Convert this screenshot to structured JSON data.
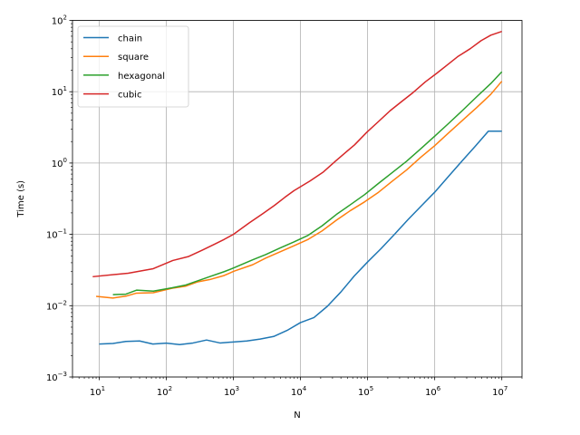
{
  "chart_data": {
    "type": "line",
    "title": "",
    "xlabel": "N",
    "ylabel": "Time (s)",
    "xscale": "log",
    "yscale": "log",
    "xlim": [
      4,
      20000000
    ],
    "ylim": [
      0.001,
      100
    ],
    "x_ticks": [
      {
        "base": "10",
        "exp": "1",
        "value": 10
      },
      {
        "base": "10",
        "exp": "2",
        "value": 100
      },
      {
        "base": "10",
        "exp": "3",
        "value": 1000
      },
      {
        "base": "10",
        "exp": "4",
        "value": 10000
      },
      {
        "base": "10",
        "exp": "5",
        "value": 100000
      },
      {
        "base": "10",
        "exp": "6",
        "value": 1000000
      },
      {
        "base": "10",
        "exp": "7",
        "value": 10000000
      }
    ],
    "y_ticks": [
      {
        "base": "10",
        "exp": "−3",
        "value": 0.001
      },
      {
        "base": "10",
        "exp": "−2",
        "value": 0.01
      },
      {
        "base": "10",
        "exp": "−1",
        "value": 0.1
      },
      {
        "base": "10",
        "exp": "0",
        "value": 1
      },
      {
        "base": "10",
        "exp": "1",
        "value": 10
      },
      {
        "base": "10",
        "exp": "2",
        "value": 100
      }
    ],
    "grid": true,
    "legend_position": "upper-left",
    "series": [
      {
        "name": "chain",
        "color": "#1f77b4",
        "x": [
          10,
          16,
          25,
          40,
          63,
          100,
          158,
          251,
          398,
          631,
          1000,
          1585,
          2512,
          3981,
          6310,
          10000,
          15849,
          25119,
          39811,
          63096,
          100000,
          158489,
          251189,
          398107,
          630957,
          1000000,
          1584893,
          2511886,
          3981072,
          6309573,
          10000000
        ],
        "y": [
          0.0029,
          0.00295,
          0.00315,
          0.0032,
          0.0029,
          0.00298,
          0.00285,
          0.003,
          0.0033,
          0.003,
          0.0031,
          0.0032,
          0.0034,
          0.0037,
          0.0045,
          0.0058,
          0.0068,
          0.0098,
          0.0155,
          0.026,
          0.041,
          0.063,
          0.1,
          0.16,
          0.25,
          0.39,
          0.64,
          1.05,
          1.7,
          2.8,
          2.8
        ]
      },
      {
        "name": "square",
        "color": "#ff7f0e",
        "x": [
          9,
          16,
          25,
          36,
          64,
          121,
          196,
          289,
          441,
          729,
          1024,
          1936,
          3025,
          4900,
          7921,
          12996,
          21025,
          34225,
          55225,
          90000,
          145924,
          235225,
          380689,
          616225,
          998001,
          1615441,
          2614689,
          4231249,
          6848689,
          10000000
        ],
        "y": [
          0.0135,
          0.0128,
          0.0136,
          0.015,
          0.0152,
          0.0175,
          0.0188,
          0.0215,
          0.0232,
          0.0265,
          0.0305,
          0.0375,
          0.0465,
          0.0565,
          0.069,
          0.085,
          0.112,
          0.158,
          0.215,
          0.285,
          0.39,
          0.56,
          0.8,
          1.2,
          1.75,
          2.65,
          4.0,
          6.0,
          9.2,
          14.0
        ]
      },
      {
        "name": "hexagonal",
        "color": "#2ca02c",
        "x": [
          16,
          25,
          36,
          64,
          121,
          196,
          289,
          441,
          729,
          1024,
          1936,
          3025,
          4900,
          7921,
          12996,
          21025,
          34225,
          55225,
          90000,
          145924,
          235225,
          380689,
          616225,
          998001,
          1615441,
          2614689,
          4231249,
          6848689,
          10000000
        ],
        "y": [
          0.0143,
          0.0145,
          0.0165,
          0.016,
          0.0178,
          0.0195,
          0.0222,
          0.0255,
          0.03,
          0.034,
          0.044,
          0.052,
          0.064,
          0.078,
          0.097,
          0.132,
          0.19,
          0.26,
          0.36,
          0.52,
          0.74,
          1.06,
          1.58,
          2.38,
          3.6,
          5.5,
          8.5,
          13.0,
          19.0
        ]
      },
      {
        "name": "cubic",
        "color": "#d62728",
        "x": [
          8,
          27,
          64,
          125,
          216,
          343,
          512,
          729,
          1000,
          1728,
          2744,
          4096,
          5832,
          8000,
          13824,
          21952,
          32768,
          46656,
          64000,
          97336,
          148877,
          216000,
          328509,
          474552,
          729000,
          1061208,
          1560896,
          2197000,
          3375000,
          4913000,
          6859000,
          10000000
        ],
        "y": [
          0.0255,
          0.0285,
          0.033,
          0.043,
          0.049,
          0.06,
          0.072,
          0.085,
          0.1,
          0.145,
          0.195,
          0.255,
          0.33,
          0.41,
          0.56,
          0.75,
          1.05,
          1.4,
          1.8,
          2.7,
          3.9,
          5.4,
          7.4,
          9.7,
          13.8,
          18.0,
          24.0,
          31.0,
          40.0,
          52.0,
          62.0,
          70.0
        ]
      }
    ]
  }
}
